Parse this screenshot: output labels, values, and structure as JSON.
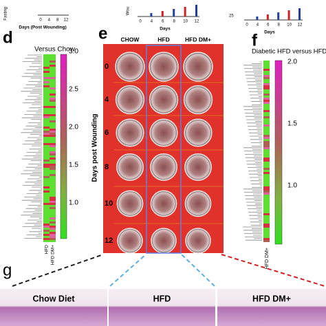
{
  "top_charts": [
    {
      "y_label": "Fasting",
      "x_label": "Days (Post Wounding)",
      "x_ticks": [
        "0",
        "4",
        "8",
        "12"
      ]
    },
    {
      "y_label": "Wou",
      "x_label": "Days",
      "x_ticks": [
        "0",
        "4",
        "6",
        "8",
        "10",
        "12"
      ]
    },
    {
      "y_label": "25",
      "x_label": "Days",
      "x_ticks": [
        "0",
        "4",
        "6",
        "8",
        "10",
        "12"
      ]
    }
  ],
  "panel_d": {
    "label": "d",
    "title": "Versus Chow",
    "columns": [
      "HFD",
      "HFD DM+"
    ],
    "scale": [
      "3.0",
      "2.5",
      "2.0",
      "1.5",
      "1.0"
    ]
  },
  "panel_e": {
    "label": "e",
    "columns": [
      "CHOW",
      "HFD",
      "HFD DM+"
    ],
    "rows": [
      "0",
      "4",
      "6",
      "8",
      "10",
      "12"
    ],
    "y_title": "Days post Wounding"
  },
  "panel_f": {
    "label": "f",
    "title": "Diabetic HFD versus HFD",
    "column": "HFD DM+",
    "scale": [
      "2.0",
      "1.5",
      "1.0"
    ]
  },
  "panel_g": {
    "label": "g",
    "panels": [
      "Chow Diet",
      "HFD",
      "HFD DM+"
    ]
  }
}
